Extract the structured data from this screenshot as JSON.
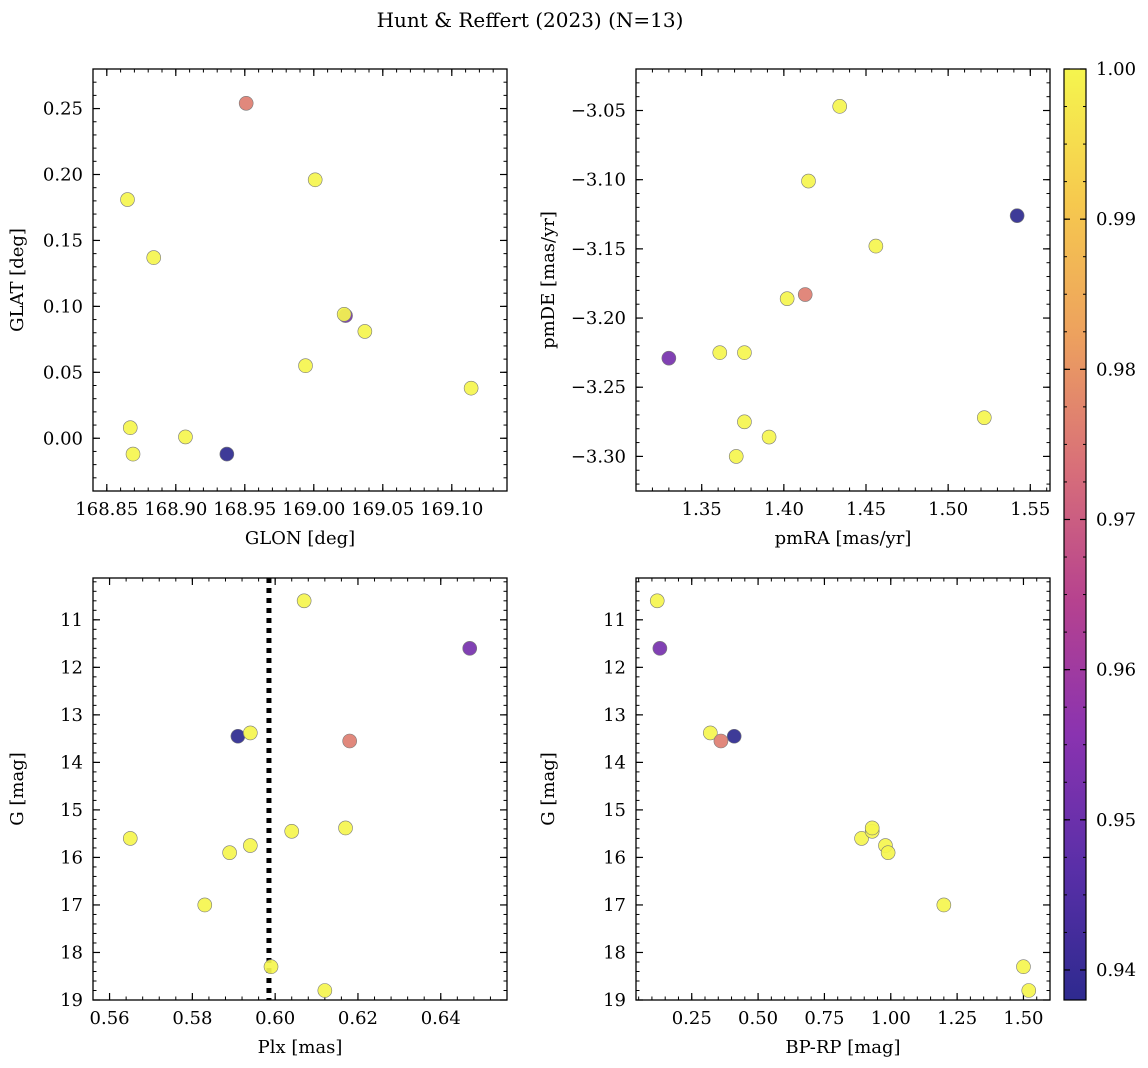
{
  "figure": {
    "title": "Hunt & Reffert (2023) (N=13)"
  },
  "colorbar": {
    "min": 0.938,
    "max": 1.0,
    "tick_labels": [
      "0.94",
      "0.95",
      "0.96",
      "0.97",
      "0.98",
      "0.99",
      "1.00"
    ],
    "ticks": [
      0.94,
      0.95,
      0.96,
      0.97,
      0.98,
      0.99,
      1.0
    ],
    "colors": [
      "#2e2a8f",
      "#5a2fa8",
      "#8a33b0",
      "#b6428f",
      "#d86f79",
      "#eda15e",
      "#f6c94e",
      "#f5f54e"
    ]
  },
  "chart_data": [
    {
      "type": "scatter",
      "xlabel": "GLON [deg]",
      "ylabel": "GLAT [deg]",
      "xlim": [
        168.84,
        169.14
      ],
      "ylim": [
        -0.04,
        0.28
      ],
      "x_tick_labels": [
        "168.85",
        "168.90",
        "168.95",
        "169.00",
        "169.05",
        "169.10"
      ],
      "x_ticks": [
        168.85,
        168.9,
        168.95,
        169.0,
        169.05,
        169.1
      ],
      "y_tick_labels": [
        "0.00",
        "0.05",
        "0.10",
        "0.15",
        "0.20",
        "0.25"
      ],
      "y_ticks": [
        0.0,
        0.05,
        0.1,
        0.15,
        0.2,
        0.25
      ],
      "points": [
        {
          "x": 168.951,
          "y": 0.254,
          "c": 0.976
        },
        {
          "x": 169.001,
          "y": 0.196,
          "c": 1.0
        },
        {
          "x": 168.865,
          "y": 0.181,
          "c": 1.0
        },
        {
          "x": 168.884,
          "y": 0.137,
          "c": 1.0
        },
        {
          "x": 169.023,
          "y": 0.093,
          "c": 0.952
        },
        {
          "x": 169.022,
          "y": 0.094,
          "c": 1.0
        },
        {
          "x": 169.037,
          "y": 0.081,
          "c": 1.0
        },
        {
          "x": 168.994,
          "y": 0.055,
          "c": 1.0
        },
        {
          "x": 169.114,
          "y": 0.038,
          "c": 1.0
        },
        {
          "x": 168.867,
          "y": 0.008,
          "c": 1.0
        },
        {
          "x": 168.907,
          "y": 0.001,
          "c": 1.0
        },
        {
          "x": 168.869,
          "y": -0.012,
          "c": 1.0
        },
        {
          "x": 168.937,
          "y": -0.012,
          "c": 0.938
        }
      ]
    },
    {
      "type": "scatter",
      "xlabel": "pmRA [mas/yr]",
      "ylabel": "pmDE [mas/yr]",
      "xlim": [
        1.31,
        1.562
      ],
      "ylim": [
        -3.325,
        -3.02
      ],
      "x_tick_labels": [
        "1.35",
        "1.40",
        "1.45",
        "1.50",
        "1.55"
      ],
      "x_ticks": [
        1.35,
        1.4,
        1.45,
        1.5,
        1.55
      ],
      "y_tick_labels": [
        "−3.05",
        "−3.10",
        "−3.15",
        "−3.20",
        "−3.25",
        "−3.30"
      ],
      "y_ticks": [
        -3.05,
        -3.1,
        -3.15,
        -3.2,
        -3.25,
        -3.3
      ],
      "points": [
        {
          "x": 1.434,
          "y": -3.047,
          "c": 1.0
        },
        {
          "x": 1.415,
          "y": -3.101,
          "c": 1.0
        },
        {
          "x": 1.542,
          "y": -3.126,
          "c": 0.938
        },
        {
          "x": 1.456,
          "y": -3.148,
          "c": 1.0
        },
        {
          "x": 1.402,
          "y": -3.186,
          "c": 1.0
        },
        {
          "x": 1.413,
          "y": -3.183,
          "c": 0.976
        },
        {
          "x": 1.33,
          "y": -3.229,
          "c": 0.952
        },
        {
          "x": 1.361,
          "y": -3.225,
          "c": 1.0
        },
        {
          "x": 1.376,
          "y": -3.225,
          "c": 1.0
        },
        {
          "x": 1.376,
          "y": -3.275,
          "c": 1.0
        },
        {
          "x": 1.522,
          "y": -3.272,
          "c": 1.0
        },
        {
          "x": 1.391,
          "y": -3.286,
          "c": 1.0
        },
        {
          "x": 1.371,
          "y": -3.3,
          "c": 1.0
        }
      ]
    },
    {
      "type": "scatter",
      "xlabel": "Plx [mas]",
      "ylabel": "G [mag]",
      "xlim": [
        0.556,
        0.656
      ],
      "ylim": [
        19.0,
        10.12
      ],
      "x_tick_labels": [
        "0.56",
        "0.58",
        "0.60",
        "0.62",
        "0.64"
      ],
      "x_ticks": [
        0.56,
        0.58,
        0.6,
        0.62,
        0.64
      ],
      "y_tick_labels": [
        "11",
        "12",
        "13",
        "14",
        "15",
        "16",
        "17",
        "18",
        "19"
      ],
      "y_ticks": [
        11,
        12,
        13,
        14,
        15,
        16,
        17,
        18,
        19
      ],
      "vline": 0.5985,
      "points": [
        {
          "x": 0.607,
          "y": 10.6,
          "c": 1.0
        },
        {
          "x": 0.647,
          "y": 11.6,
          "c": 0.952
        },
        {
          "x": 0.591,
          "y": 13.45,
          "c": 0.938
        },
        {
          "x": 0.594,
          "y": 13.38,
          "c": 1.0
        },
        {
          "x": 0.618,
          "y": 13.55,
          "c": 0.976
        },
        {
          "x": 0.565,
          "y": 15.6,
          "c": 1.0
        },
        {
          "x": 0.604,
          "y": 15.45,
          "c": 1.0
        },
        {
          "x": 0.617,
          "y": 15.38,
          "c": 1.0
        },
        {
          "x": 0.589,
          "y": 15.9,
          "c": 1.0
        },
        {
          "x": 0.594,
          "y": 15.75,
          "c": 1.0
        },
        {
          "x": 0.583,
          "y": 17.0,
          "c": 1.0
        },
        {
          "x": 0.599,
          "y": 18.3,
          "c": 1.0
        },
        {
          "x": 0.612,
          "y": 18.8,
          "c": 1.0
        }
      ]
    },
    {
      "type": "scatter",
      "xlabel": "BP-RP [mag]",
      "ylabel": "G [mag]",
      "xlim": [
        0.04,
        1.6
      ],
      "ylim": [
        19.0,
        10.12
      ],
      "x_tick_labels": [
        "0.25",
        "0.50",
        "0.75",
        "1.00",
        "1.25",
        "1.50"
      ],
      "x_ticks": [
        0.25,
        0.5,
        0.75,
        1.0,
        1.25,
        1.5
      ],
      "y_tick_labels": [
        "11",
        "12",
        "13",
        "14",
        "15",
        "16",
        "17",
        "18",
        "19"
      ],
      "y_ticks": [
        11,
        12,
        13,
        14,
        15,
        16,
        17,
        18,
        19
      ],
      "points": [
        {
          "x": 0.12,
          "y": 10.6,
          "c": 1.0
        },
        {
          "x": 0.13,
          "y": 11.6,
          "c": 0.952
        },
        {
          "x": 0.32,
          "y": 13.38,
          "c": 1.0
        },
        {
          "x": 0.41,
          "y": 13.45,
          "c": 0.938
        },
        {
          "x": 0.36,
          "y": 13.55,
          "c": 0.976
        },
        {
          "x": 0.89,
          "y": 15.6,
          "c": 1.0
        },
        {
          "x": 0.93,
          "y": 15.45,
          "c": 1.0
        },
        {
          "x": 0.93,
          "y": 15.38,
          "c": 1.0
        },
        {
          "x": 0.98,
          "y": 15.75,
          "c": 1.0
        },
        {
          "x": 0.99,
          "y": 15.9,
          "c": 1.0
        },
        {
          "x": 1.2,
          "y": 17.0,
          "c": 1.0
        },
        {
          "x": 1.5,
          "y": 18.3,
          "c": 1.0
        },
        {
          "x": 1.52,
          "y": 18.8,
          "c": 1.0
        }
      ]
    }
  ]
}
